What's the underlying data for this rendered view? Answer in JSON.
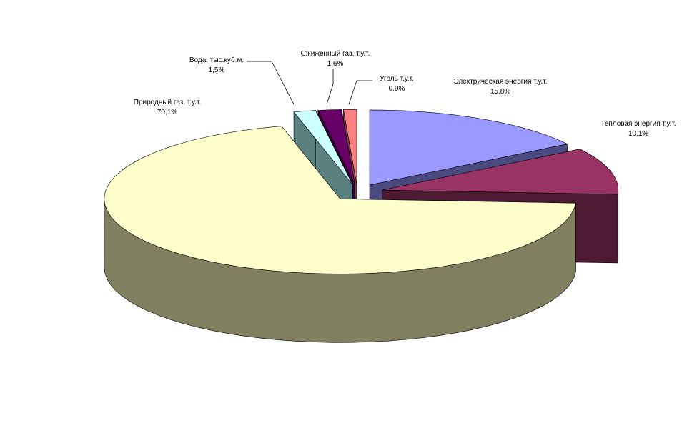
{
  "chart_data": {
    "type": "pie",
    "style": "3d-exploded",
    "title": "",
    "slices": [
      {
        "label": "Электрическая энергия т.у.т.",
        "pct_label": "15,8%",
        "value": 15.8,
        "color": "#9999ff",
        "side_color": "#4a4a80"
      },
      {
        "label": "Тепловая энергия т.у.т.",
        "pct_label": "10,1%",
        "value": 10.1,
        "color": "#993366",
        "side_color": "#4c1a33"
      },
      {
        "label": "Природный газ. т.у.т.",
        "pct_label": "70,1%",
        "value": 70.1,
        "color": "#ffffcc",
        "side_color": "#808060"
      },
      {
        "label": "Вода, тыс.куб.м.",
        "pct_label": "1,5%",
        "value": 1.5,
        "color": "#ccffff",
        "side_color": "#5a8080"
      },
      {
        "label": "Сжиженный газ, т.у.т.",
        "pct_label": "1,6%",
        "value": 1.6,
        "color": "#660066",
        "side_color": "#330033"
      },
      {
        "label": "Уголь т.у.т.",
        "pct_label": "0,9%",
        "value": 0.9,
        "color": "#ff8080",
        "side_color": "#804040"
      }
    ],
    "legend": "none"
  }
}
